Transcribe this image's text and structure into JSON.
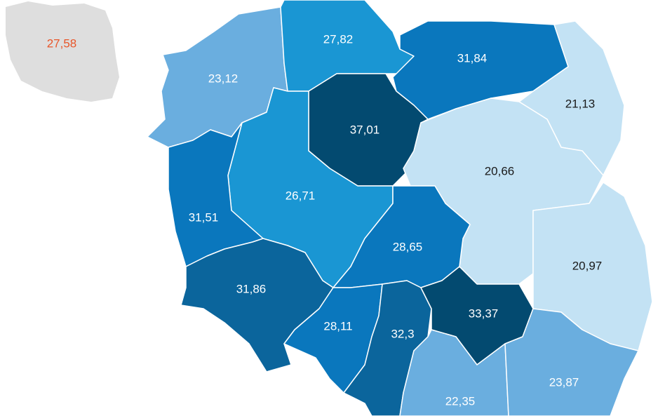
{
  "national": {
    "label": "27,58"
  },
  "regions": [
    {
      "label": "23,12",
      "color": "#6aaedf",
      "text_color": "#ffffff"
    },
    {
      "label": "27,82",
      "color": "#1a96d3",
      "text_color": "#ffffff"
    },
    {
      "label": "31,84",
      "color": "#0a77bd",
      "text_color": "#ffffff"
    },
    {
      "label": "21,13",
      "color": "#c3e2f4",
      "text_color": "#1a1a1a"
    },
    {
      "label": "37,01",
      "color": "#034a70",
      "text_color": "#ffffff"
    },
    {
      "label": "26,71",
      "color": "#1a96d3",
      "text_color": "#ffffff"
    },
    {
      "label": "31,51",
      "color": "#0a77bd",
      "text_color": "#ffffff"
    },
    {
      "label": "20,66",
      "color": "#c3e2f4",
      "text_color": "#1a1a1a"
    },
    {
      "label": "20,97",
      "color": "#c3e2f4",
      "text_color": "#1a1a1a"
    },
    {
      "label": "28,65",
      "color": "#0a77bd",
      "text_color": "#ffffff"
    },
    {
      "label": "31,86",
      "color": "#0b659c",
      "text_color": "#ffffff"
    },
    {
      "label": "28,11",
      "color": "#0a77bd",
      "text_color": "#ffffff"
    },
    {
      "label": "32,3",
      "color": "#0b659c",
      "text_color": "#ffffff"
    },
    {
      "label": "33,37",
      "color": "#034a70",
      "text_color": "#ffffff"
    },
    {
      "label": "22,35",
      "color": "#6aaedf",
      "text_color": "#ffffff"
    },
    {
      "label": "23,87",
      "color": "#6aaedf",
      "text_color": "#ffffff"
    }
  ]
}
